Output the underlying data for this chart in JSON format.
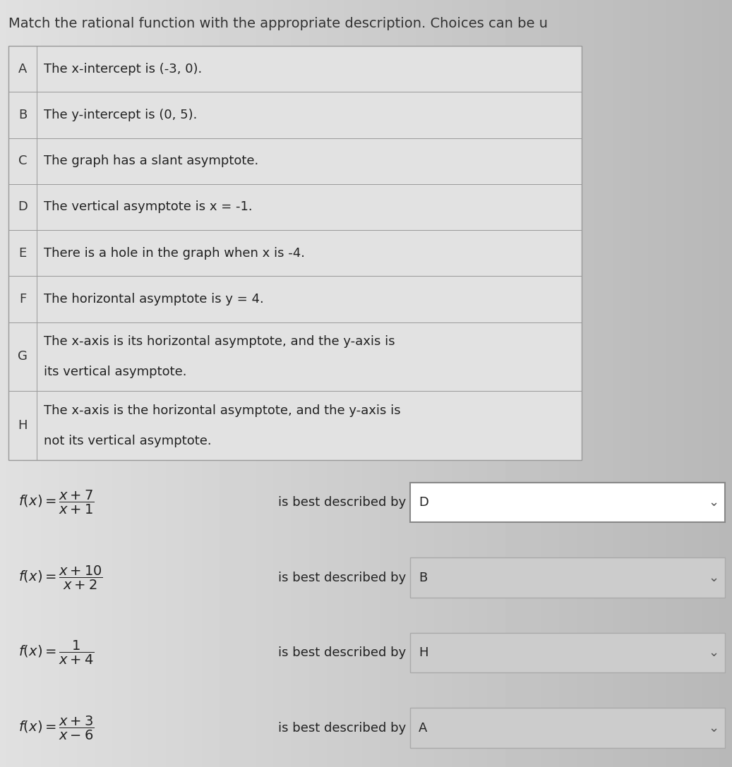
{
  "title": "Match the rational function with the appropriate description. Choices can be u",
  "title_color": "#333333",
  "title_fontsize": 14,
  "bg_color_left": "#d8d8d8",
  "bg_color_right": "#b0b0b0",
  "table_bg": "#e2e2e2",
  "table_border": "#999999",
  "rows": [
    {
      "label": "A",
      "text": "The x-intercept is (-3, 0)."
    },
    {
      "label": "B",
      "text": "The y-intercept is (0, 5)."
    },
    {
      "label": "C",
      "text": "The graph has a slant asymptote."
    },
    {
      "label": "D",
      "text": "The vertical asymptote is x = -1."
    },
    {
      "label": "E",
      "text": "There is a hole in the graph when x is -4."
    },
    {
      "label": "F",
      "text": "The horizontal asymptote is y = 4."
    },
    {
      "label": "G",
      "text": "The x-axis is its horizontal asymptote, and the y-axis is\nits vertical asymptote."
    },
    {
      "label": "H",
      "text": "The x-axis is the horizontal asymptote, and the y-axis is\nnot its vertical asymptote."
    }
  ],
  "equations": [
    {
      "func_latex": "$f(x) = \\dfrac{x+7}{x+1}$",
      "answer": "D",
      "box_white": true
    },
    {
      "func_latex": "$f(x) = \\dfrac{x+10}{x+2}$",
      "answer": "B",
      "box_white": false
    },
    {
      "func_latex": "$f(x) = \\dfrac{1}{x+4}$",
      "answer": "H",
      "box_white": false
    },
    {
      "func_latex": "$f(x) = \\dfrac{x+3}{x-6}$",
      "answer": "A",
      "box_white": false
    }
  ],
  "text_color": "#222222",
  "label_color": "#333333",
  "answer_box_white": "#ffffff",
  "answer_box_gray": "#cccccc",
  "answer_box_border_white": "#888888",
  "answer_box_border_gray": "#aaaaaa"
}
